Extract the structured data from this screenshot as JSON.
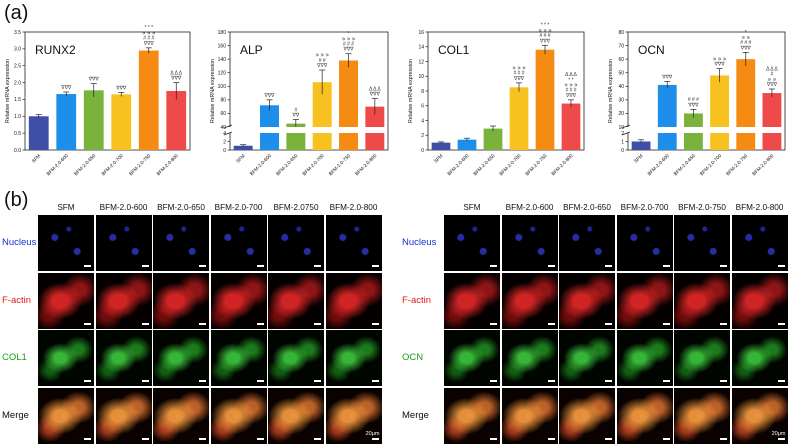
{
  "panel_a_label": "(a)",
  "panel_b_label": "(b)",
  "bar_colors": [
    "#3f4fa8",
    "#1d8fea",
    "#7ab33c",
    "#f7c21f",
    "#f58b12",
    "#ef4a4a"
  ],
  "chart_data": [
    {
      "type": "bar",
      "title": "RUNX2",
      "ylabel": "Relative mRNA expression",
      "categories": [
        "SFM",
        "BFM-2.0-600",
        "BFM-2.0-650",
        "BFM-2.0-700",
        "BFM-2.0-750",
        "BFM-2.0-800"
      ],
      "values": [
        1.0,
        1.66,
        1.77,
        1.65,
        2.95,
        1.75
      ],
      "errors": [
        0.05,
        0.06,
        0.2,
        0.06,
        0.08,
        0.25
      ],
      "ylim": [
        0,
        3.5
      ],
      "yticks": [
        "0.0",
        "0.5",
        "1.0",
        "1.5",
        "2.0",
        "2.5",
        "3.0",
        "3.5"
      ],
      "annotations": [
        "",
        "∇∇∇",
        "∇∇∇",
        "∇∇∇",
        "* * *\n∍ ∍ ∍\n# # #\n∇∇∇",
        "Δ Δ Δ\n∇∇∇"
      ]
    },
    {
      "type": "bar",
      "title": "ALP",
      "ylabel": "Relative mRNA expression",
      "categories": [
        "SFM",
        "BFM-2.0-600",
        "BFM-2.0-650",
        "BFM-2.0-700",
        "BFM-2.0-750",
        "BFM-2.0-800"
      ],
      "values": [
        1.0,
        72,
        45,
        106,
        138,
        70
      ],
      "errors": [
        0.25,
        8,
        6,
        18,
        10,
        12
      ],
      "lower_ylim": [
        0,
        4
      ],
      "upper_ylim": [
        40,
        180
      ],
      "lower_yticks": [
        "0",
        "2",
        "4"
      ],
      "upper_yticks": [
        "40",
        "60",
        "80",
        "100",
        "120",
        "140",
        "160",
        "180"
      ],
      "annotations": [
        "",
        "∇∇∇",
        "#\n∇∇",
        "∍ ∍ ∍\n# #\n∇∇∇",
        "*\n∍ ∍ ∍\n# # #\n∇∇∇",
        "Δ Δ Δ\n∇∇∇"
      ]
    },
    {
      "type": "bar",
      "title": "COL1",
      "ylabel": "Relative mRNA expression",
      "categories": [
        "SFM",
        "BFM-2.0-600",
        "BFM-2.0-650",
        "BFM-2.0-700",
        "BFM-2.0-750",
        "BFM-2.0-800"
      ],
      "values": [
        1.0,
        1.4,
        2.9,
        8.5,
        13.6,
        6.3
      ],
      "errors": [
        0.1,
        0.2,
        0.35,
        0.6,
        0.6,
        0.5
      ],
      "ylim": [
        0,
        16
      ],
      "yticks": [
        "0",
        "2",
        "4",
        "6",
        "8",
        "10",
        "12",
        "14",
        "16"
      ],
      "annotations": [
        "",
        "",
        "",
        "∍ ∍ ∍\n# # #\n∇∇∇",
        "* * *\n∍ ∍ ∍\n# # #\n∇∇∇",
        "Δ Δ Δ\n* *\n∍ ∍ ∍\n# # #\n∇∇∇"
      ]
    },
    {
      "type": "bar",
      "title": "OCN",
      "ylabel": "Relative mRNA expression",
      "categories": [
        "SFM",
        "BFM-2.0-600",
        "BFM-2.0-650",
        "BFM-2.0-700",
        "BFM-2.0-750",
        "BFM-2.0-800"
      ],
      "values": [
        1.0,
        41,
        20,
        48,
        60,
        35
      ],
      "errors": [
        0.2,
        2.5,
        3,
        5,
        5,
        3
      ],
      "lower_ylim": [
        0,
        2
      ],
      "upper_ylim": [
        10,
        80
      ],
      "lower_yticks": [
        "0",
        "1",
        "2"
      ],
      "upper_yticks": [
        "10",
        "20",
        "30",
        "40",
        "50",
        "60",
        "70",
        "80"
      ],
      "annotations": [
        "",
        "∇∇∇",
        "# # #\n∇∇∇",
        "∍ ∍ ∍\n∇∇∇",
        "*\n∍ ∍\n# # #\n∇∇∇",
        "Δ Δ Δ\n#\n∍ ∍\n∇∇∇"
      ]
    }
  ],
  "panel_b": {
    "left": {
      "columns": [
        "SFM",
        "BFM-2.0-600",
        "BFM-2.0-650",
        "BFM-2.0-700",
        "BFM-2.0750",
        "BFM-2.0-800"
      ],
      "rows": [
        {
          "label": "Nucleus",
          "color": "#1a2fd0"
        },
        {
          "label": "F-actin",
          "color": "#e01818"
        },
        {
          "label": "COL1",
          "color": "#18a018"
        },
        {
          "label": "Merge",
          "color": "#111111"
        }
      ],
      "scale_label": "20μm"
    },
    "right": {
      "columns": [
        "SFM",
        "BFM-2.0-600",
        "BFM-2.0-650",
        "BFM-2.0-700",
        "BFM-2.0-750",
        "BFM-2.0-800"
      ],
      "rows": [
        {
          "label": "Nucleus",
          "color": "#1a2fd0"
        },
        {
          "label": "F-actin",
          "color": "#e01818"
        },
        {
          "label": "OCN",
          "color": "#18a018"
        },
        {
          "label": "Merge",
          "color": "#111111"
        }
      ],
      "scale_label": "20μm"
    }
  }
}
